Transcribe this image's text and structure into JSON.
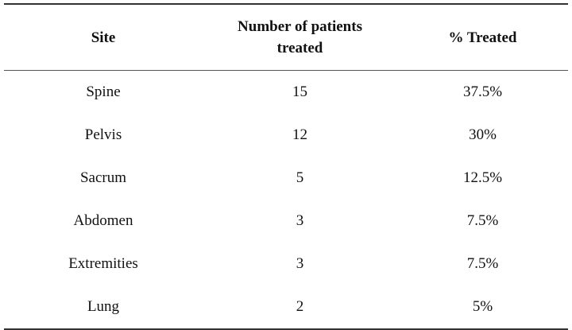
{
  "table": {
    "header": [
      "Site",
      "Number of patients treated",
      "% Treated"
    ],
    "rows": [
      [
        "Spine",
        "15",
        "37.5%"
      ],
      [
        "Pelvis",
        "12",
        "30%"
      ],
      [
        "Sacrum",
        "5",
        "12.5%"
      ],
      [
        "Abdomen",
        "3",
        "7.5%"
      ],
      [
        "Extremities",
        "3",
        "7.5%"
      ],
      [
        "Lung",
        "2",
        "5%"
      ]
    ]
  }
}
